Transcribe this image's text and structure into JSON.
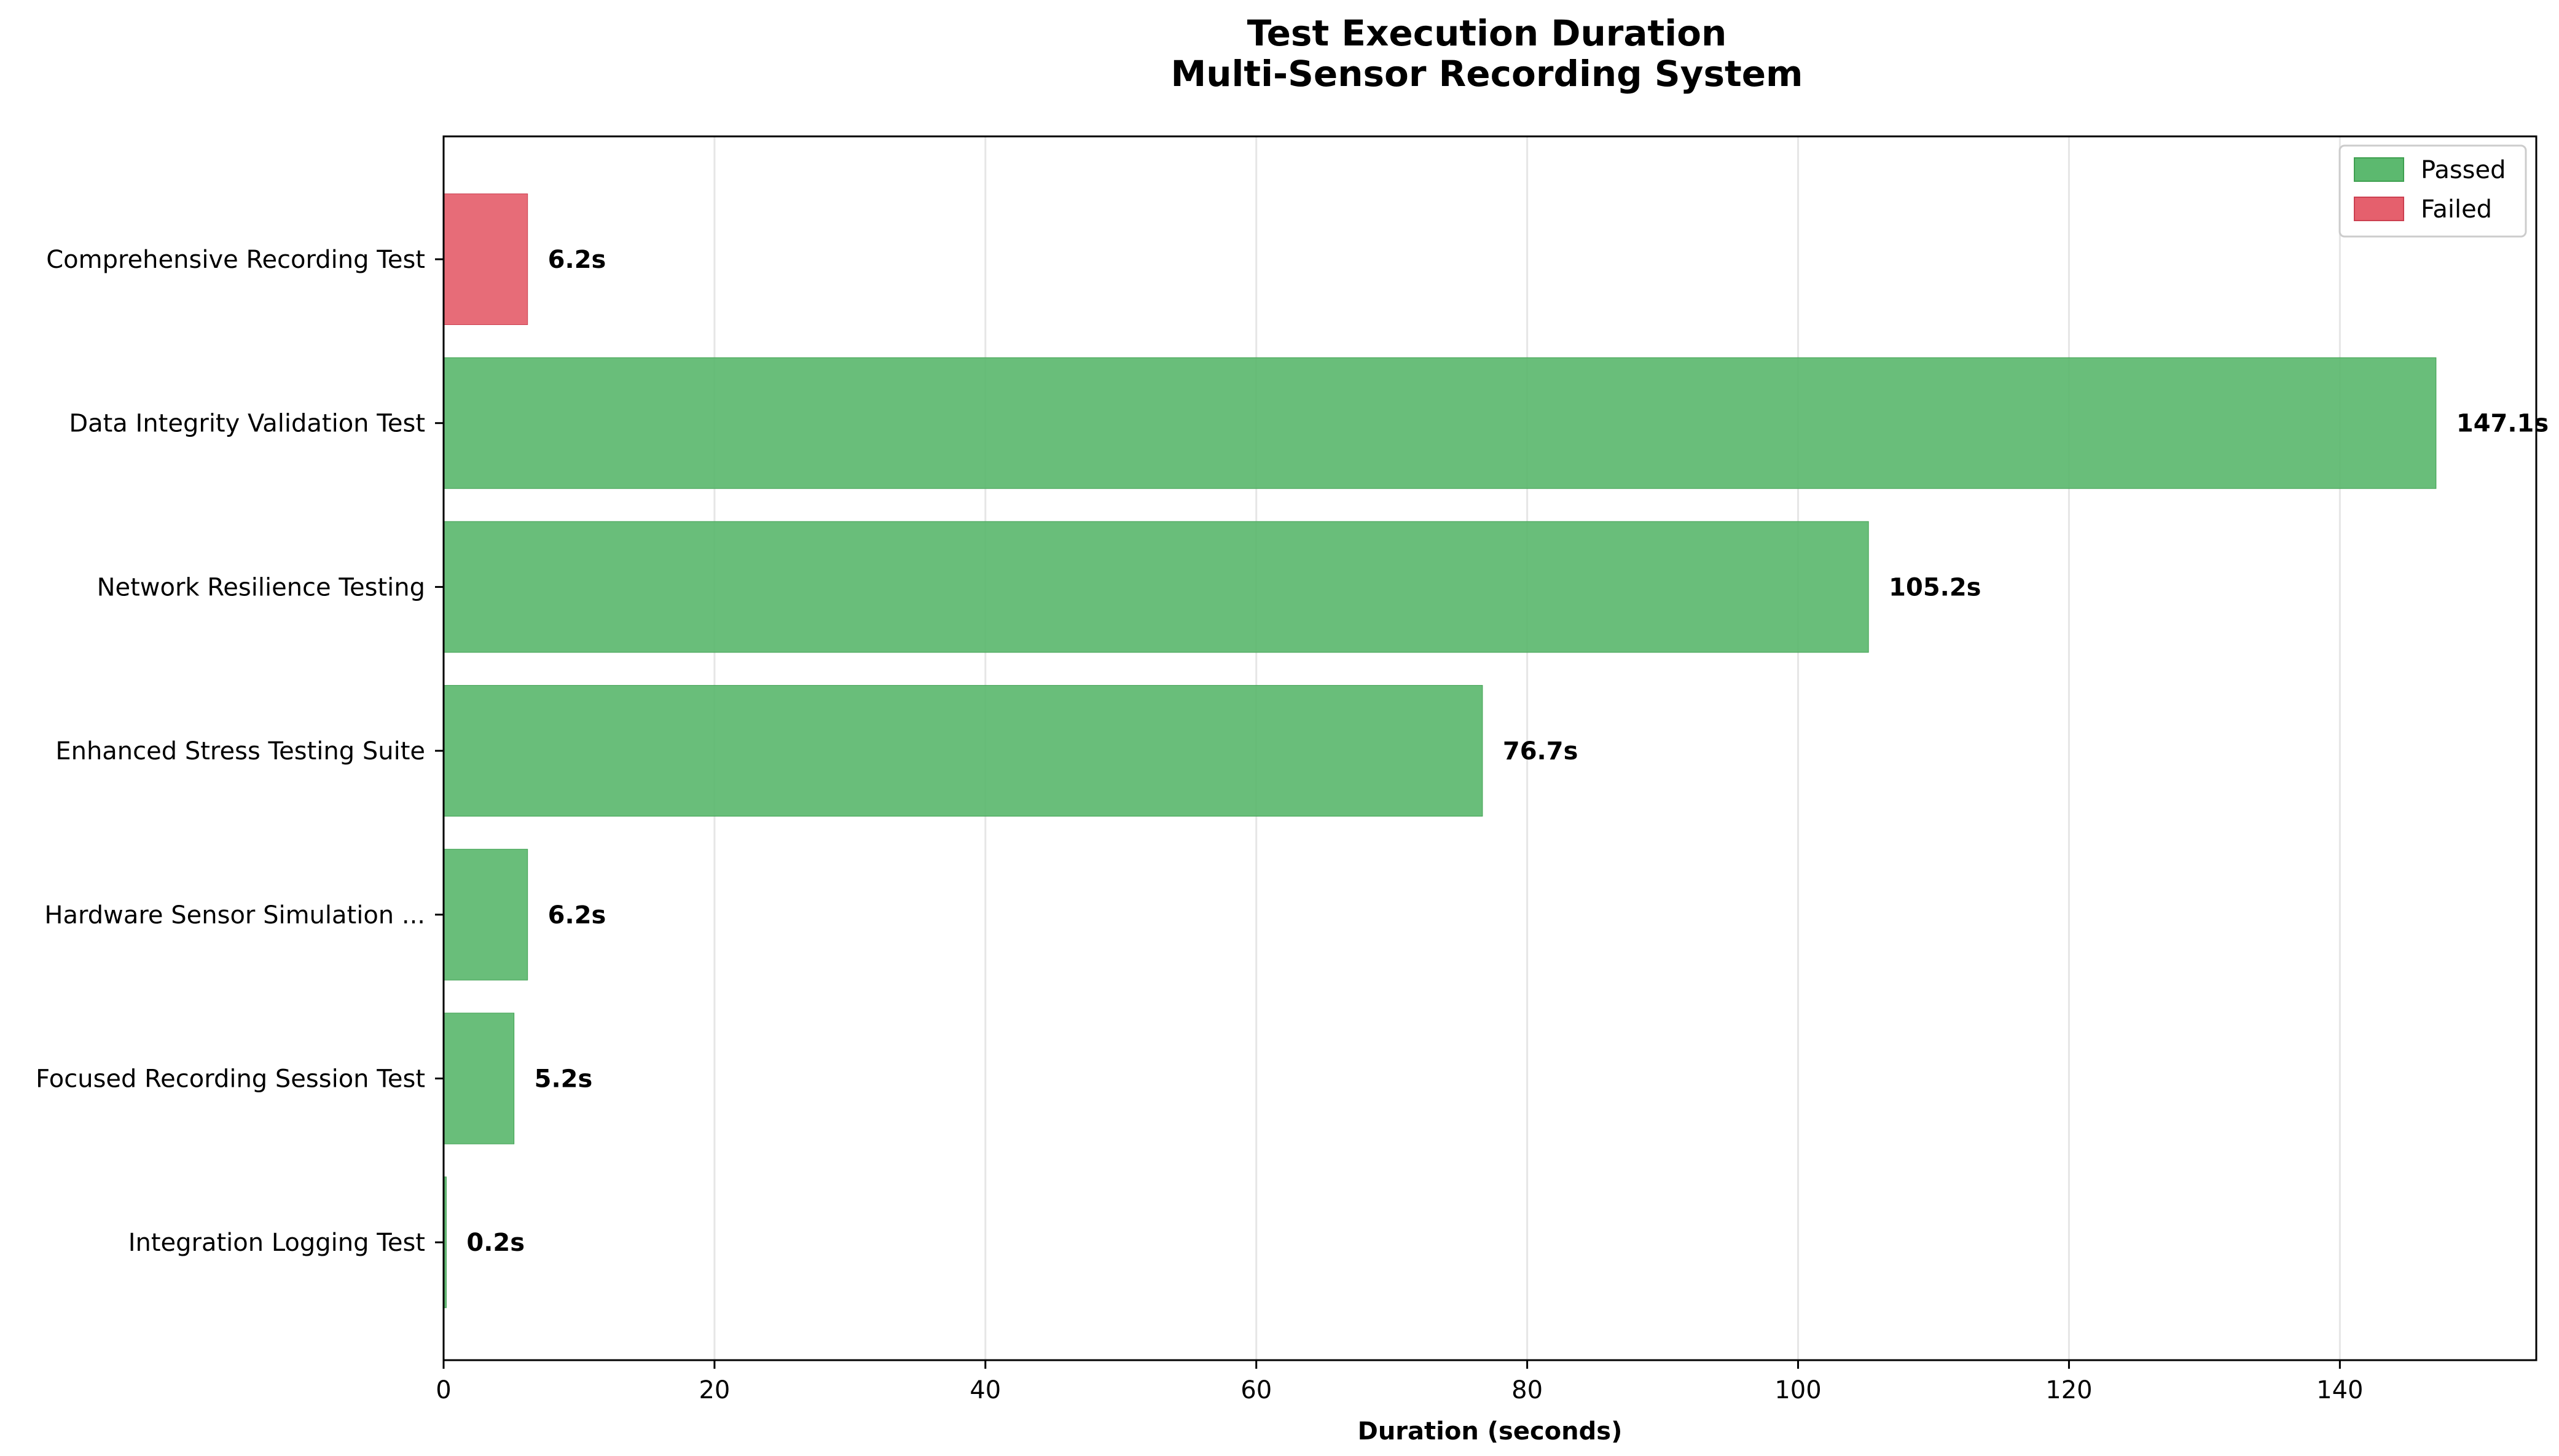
{
  "colors": {
    "passed": "#5cb96f",
    "passed_edge": "#3fa050",
    "failed": "#e5606d",
    "failed_edge": "#cc4050",
    "grid": "#e6e6e6",
    "axis": "#000000"
  },
  "chart_data": {
    "type": "bar",
    "orientation": "horizontal",
    "title": "Test Execution Duration",
    "subtitle": "Multi-Sensor Recording System",
    "xlabel": "Duration (seconds)",
    "ylabel": "",
    "xlim": [
      0,
      154.5
    ],
    "x_ticks": [
      0,
      20,
      40,
      60,
      80,
      100,
      120,
      140
    ],
    "grid": "vertical",
    "legend_position": "top-right",
    "legend": [
      {
        "label": "Passed",
        "status": "passed"
      },
      {
        "label": "Failed",
        "status": "failed"
      }
    ],
    "bars": [
      {
        "category": "Comprehensive Recording Test",
        "value": 6.2,
        "label": "6.2s",
        "status": "failed"
      },
      {
        "category": "Data Integrity Validation Test",
        "value": 147.1,
        "label": "147.1s",
        "status": "passed"
      },
      {
        "category": "Network Resilience Testing",
        "value": 105.2,
        "label": "105.2s",
        "status": "passed"
      },
      {
        "category": "Enhanced Stress Testing Suite",
        "value": 76.7,
        "label": "76.7s",
        "status": "passed"
      },
      {
        "category": "Hardware Sensor Simulation ...",
        "value": 6.2,
        "label": "6.2s",
        "status": "passed"
      },
      {
        "category": "Focused Recording Session Test",
        "value": 5.2,
        "label": "5.2s",
        "status": "passed"
      },
      {
        "category": "Integration Logging Test",
        "value": 0.2,
        "label": "0.2s",
        "status": "passed"
      }
    ]
  }
}
